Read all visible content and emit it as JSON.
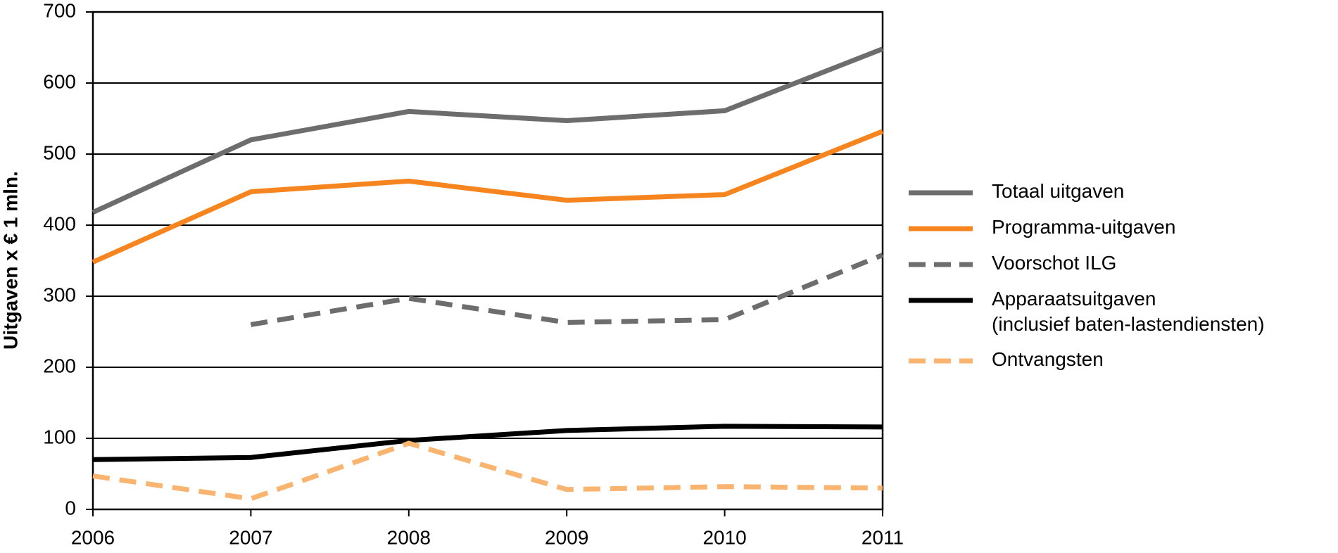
{
  "chart_data": {
    "type": "line",
    "y_label": "Uitgaven x € 1 mln.",
    "x": [
      2006,
      2007,
      2008,
      2009,
      2010,
      2011
    ],
    "xlim": [
      2006,
      2011
    ],
    "xticks": [
      2006,
      2007,
      2008,
      2009,
      2010,
      2011
    ],
    "ylim": [
      0,
      700
    ],
    "yticks": [
      0,
      100,
      200,
      300,
      400,
      500,
      600,
      700
    ],
    "grid": true,
    "legend": "right",
    "series": [
      {
        "name": "Totaal uitgaven",
        "color": "#6d6d6d",
        "dash": false,
        "values": [
          418,
          520,
          560,
          547,
          561,
          648
        ]
      },
      {
        "name": "Programma-uitgaven",
        "color": "#f7851f",
        "dash": false,
        "values": [
          348,
          447,
          462,
          435,
          443,
          532
        ]
      },
      {
        "name": "Voorschot ILG",
        "color": "#6d6d6d",
        "dash": true,
        "values": [
          null,
          260,
          297,
          263,
          267,
          358
        ]
      },
      {
        "name": "Apparaatsuitgaven\n(inclusief baten-lastendiensten)",
        "color": "#000000",
        "dash": false,
        "values": [
          70,
          73,
          97,
          111,
          117,
          116
        ]
      },
      {
        "name": "Ontvangsten",
        "color": "#f9b46f",
        "dash": true,
        "values": [
          47,
          15,
          93,
          28,
          32,
          30
        ]
      }
    ]
  }
}
